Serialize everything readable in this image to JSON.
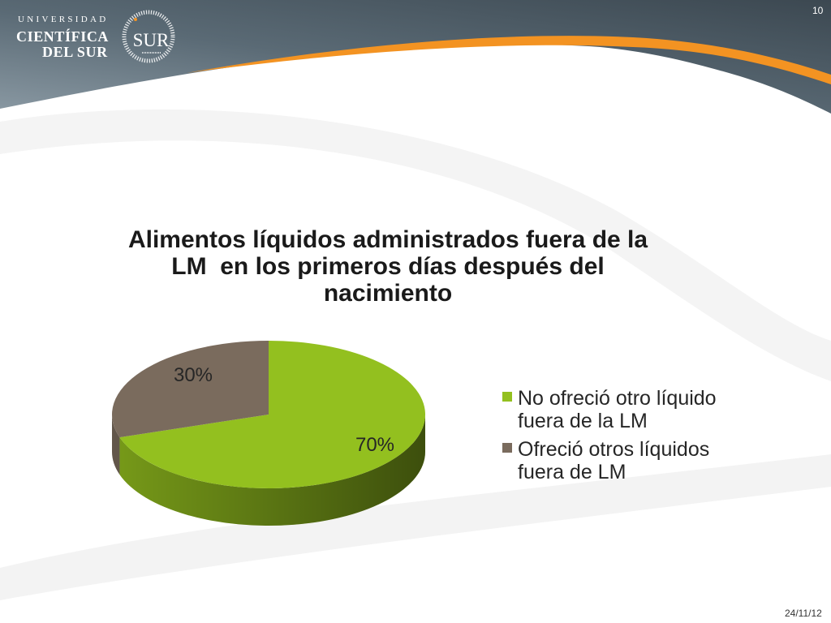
{
  "slide": {
    "page_number": "10",
    "date": "24/11/12"
  },
  "header": {
    "logo": {
      "line1": "UNIVERSIDAD",
      "line2": "CIENTÍFICA",
      "line3": "DEL SUR",
      "seal_text": "SUR"
    },
    "colors": {
      "band": "#5a6a75",
      "accent": "#f39322"
    }
  },
  "chart_data": {
    "type": "pie",
    "style": "3d",
    "title": "Alimentos líquidos administrados fuera de la\nLM  en los primeros días después del\nnacimiento",
    "categories": [
      "No ofreció otro líquido fuera de la LM",
      "Ofreció otros líquidos fuera de LM"
    ],
    "values": [
      70,
      30
    ],
    "data_labels": [
      "70%",
      "30%"
    ],
    "colors": [
      "#93c01f",
      "#7a6b5d"
    ],
    "legend_position": "right"
  }
}
